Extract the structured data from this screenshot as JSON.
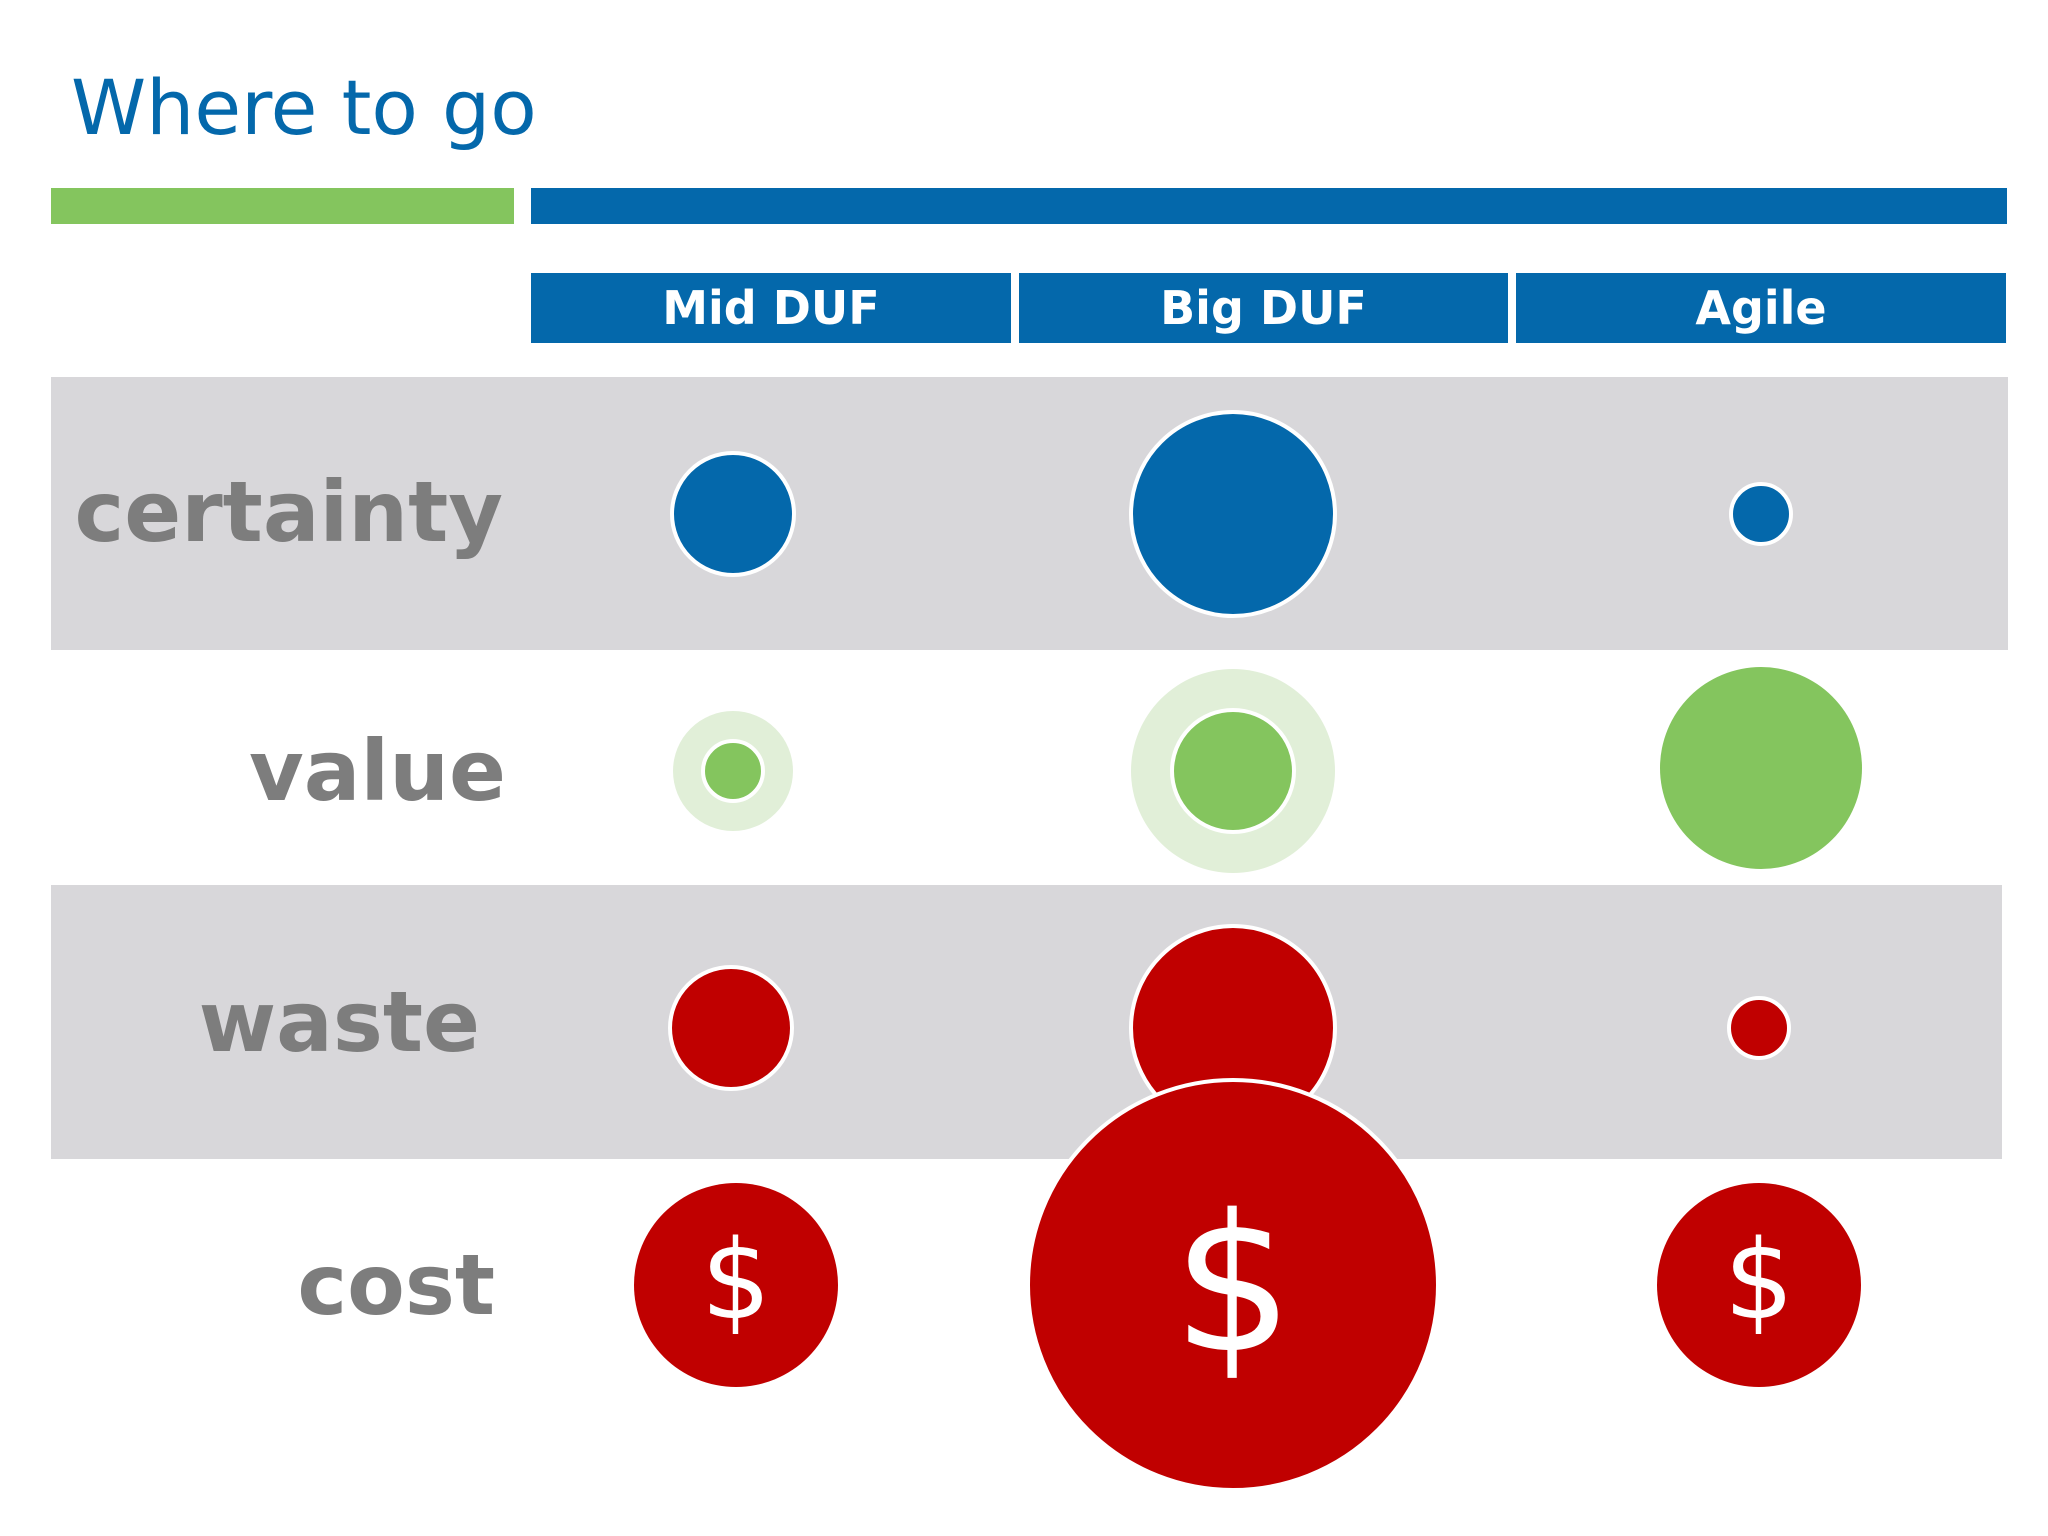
{
  "title": "Where to go",
  "columns": [
    "Mid DUF",
    "Big DUF",
    "Agile"
  ],
  "rows": [
    "certainty",
    "value",
    "waste",
    "cost"
  ],
  "cost_symbol": "$",
  "colors": {
    "title": "#0468ab",
    "header": "#0468ab",
    "accent_green": "#84c55e",
    "band": "#d8d7da",
    "label": "#7d7d7d",
    "certainty": "#0468ab",
    "value": "#84c55e",
    "value_halo": "#e1efd8",
    "waste": "#c00000",
    "cost": "#c00000"
  }
}
